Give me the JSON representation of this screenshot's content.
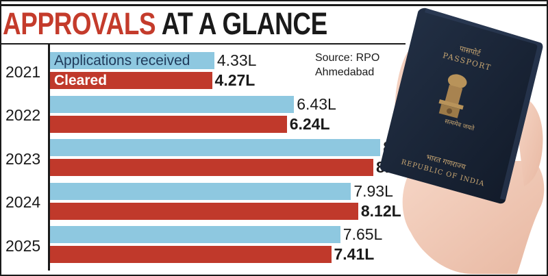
{
  "header": {
    "title_part1": "APPROVALS",
    "title_part2": "AT A GLANCE"
  },
  "source": {
    "line1": "Source: RPO",
    "line2": "Ahmedabad"
  },
  "passport": {
    "hindi_top": "पासपोर्ट",
    "english_top": "PASSPORT",
    "hindi_bottom": "भारत गणराज्य",
    "english_bottom": "REPUBLIC OF INDIA"
  },
  "colors": {
    "applications": "#8ec8e0",
    "cleared": "#c0392b",
    "headline_red": "#c43b2b"
  },
  "chart_data": {
    "type": "bar",
    "orientation": "horizontal",
    "unit": "L",
    "categories": [
      "2021",
      "2022",
      "2023",
      "2024",
      "2025"
    ],
    "series": [
      {
        "name": "Applications received",
        "values": [
          4.33,
          6.43,
          8.7,
          7.93,
          7.65
        ],
        "labels": [
          "4.33L",
          "6.43L",
          "8.7L",
          "7.93L",
          "7.65L"
        ]
      },
      {
        "name": "Cleared",
        "values": [
          4.27,
          6.24,
          8.52,
          8.12,
          7.41
        ],
        "labels": [
          "4.27L",
          "6.24L",
          "8.52L",
          "8.12L",
          "7.41L"
        ]
      }
    ],
    "legend": "inline in first bars",
    "grid": false,
    "xlim": [
      0,
      9
    ]
  }
}
